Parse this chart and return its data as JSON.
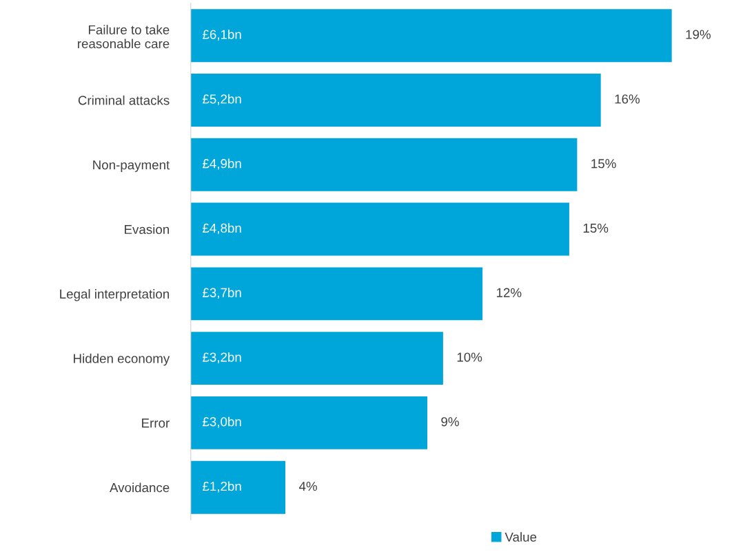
{
  "chart_data": {
    "type": "bar",
    "orientation": "horizontal",
    "categories": [
      "Failure to take\nreasonable care",
      "Criminal attacks",
      "Non-payment",
      "Evasion",
      "Legal interpretation",
      "Hidden economy",
      "Error",
      "Avoidance"
    ],
    "series": [
      {
        "name": "Value",
        "color": "#00a6d9",
        "values": [
          6.1,
          5.2,
          4.9,
          4.8,
          3.7,
          3.2,
          3.0,
          1.2
        ],
        "value_labels": [
          "£6,1bn",
          "£5,2bn",
          "£4,9bn",
          "£4,8bn",
          "£3,7bn",
          "£3,2bn",
          "£3,0bn",
          "£1,2bn"
        ]
      }
    ],
    "annotations": [
      {
        "text": "19%",
        "x": 6.1,
        "y": "Failure to take\nreasonable care"
      },
      {
        "text": "16%",
        "x": 5.2,
        "y": "Criminal attacks"
      },
      {
        "text": "15%",
        "x": 4.9,
        "y": "Non-payment"
      },
      {
        "text": "15%",
        "x": 4.8,
        "y": "Evasion"
      },
      {
        "text": "12%",
        "x": 3.7,
        "y": "Legal interpretation"
      },
      {
        "text": "10%",
        "x": 3.2,
        "y": "Hidden economy"
      },
      {
        "text": "9%",
        "x": 3.0,
        "y": "Error"
      },
      {
        "text": "4%",
        "x": 1.2,
        "y": "Avoidance"
      }
    ],
    "legend": "bottom",
    "grid": false,
    "tick_labels": "y"
  }
}
